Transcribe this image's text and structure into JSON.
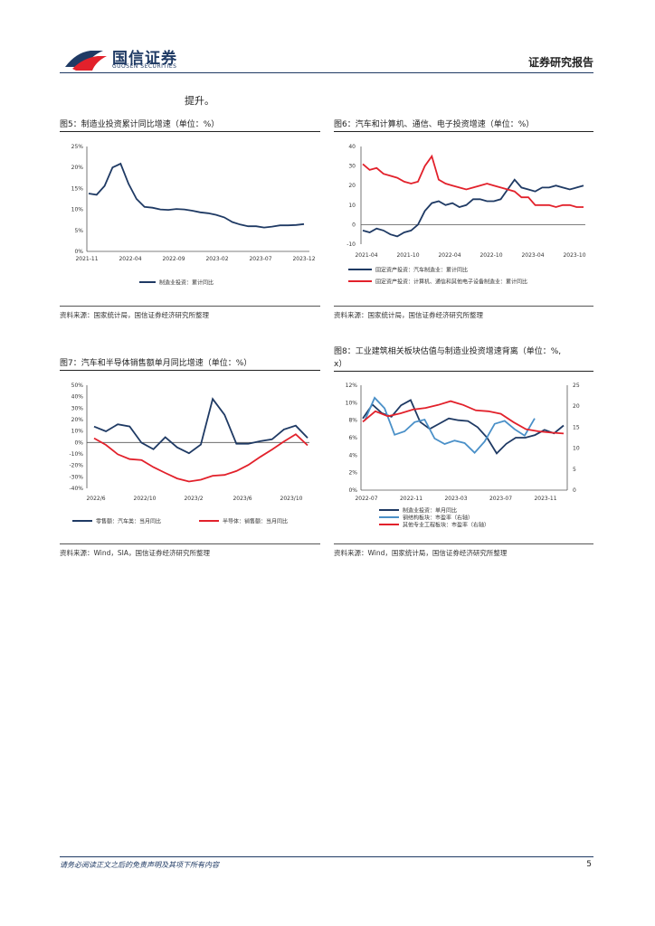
{
  "header": {
    "company_cn": "国信证券",
    "company_en": "GUOSEN SECURITIES",
    "report_type": "证券研究报告"
  },
  "lead_text": "提升。",
  "colors": {
    "navy": "#1f3a64",
    "red": "#e2212b",
    "light_blue": "#4a90c8"
  },
  "figures": {
    "fig5": {
      "title": "图5：制造业投资累计同比增速（单位：%）",
      "source": "资料来源：国家统计局，国信证券经济研究所整理"
    },
    "fig6": {
      "title": "图6：汽车和计算机、通信、电子投资增速（单位：%）",
      "source": "资料来源：国家统计局，国信证券经济研究所整理"
    },
    "fig7": {
      "title": "图7：汽车和半导体销售额单月同比增速（单位：%）",
      "source": "资料来源：Wind，SIA，国信证券经济研究所整理"
    },
    "fig8": {
      "title_line1": "图8：工业建筑相关板块估值与制造业投资增速背离（单位：%,",
      "title_line2": "x）",
      "source": "资料来源：Wind，国家统计局，国信证券经济研究所整理"
    }
  },
  "chart_data": [
    {
      "id": "fig5",
      "type": "line",
      "x_ticks": [
        "2021-11",
        "2022-04",
        "2022-09",
        "2023-02",
        "2023-07",
        "2023-12"
      ],
      "y_ticks": [
        "0%",
        "5%",
        "10%",
        "15%",
        "20%",
        "25%"
      ],
      "ylim": [
        0,
        25
      ],
      "series": [
        {
          "name": "制造业投资：累计同比",
          "color": "#1f3a64",
          "values": [
            13.8,
            13.5,
            15.6,
            20.0,
            20.9,
            16.1,
            12.5,
            10.6,
            10.4,
            10.0,
            9.9,
            10.1,
            10.0,
            9.7,
            9.3,
            9.1,
            8.7,
            8.1,
            7.0,
            6.4,
            6.0,
            6.0,
            5.7,
            5.9,
            6.2,
            6.2,
            6.3,
            6.5
          ]
        }
      ]
    },
    {
      "id": "fig6",
      "type": "line",
      "x_ticks": [
        "2021-04",
        "2021-10",
        "2022-04",
        "2022-10",
        "2023-04",
        "2023-10"
      ],
      "y_ticks": [
        "-10",
        "0",
        "10",
        "20",
        "30",
        "40"
      ],
      "ylim": [
        -10,
        40
      ],
      "series": [
        {
          "name": "固定资产投资：汽车制造业：累计同比",
          "color": "#1f3a64",
          "values": [
            -3,
            -4,
            -2,
            -3,
            -5,
            -6,
            -4,
            -3,
            0,
            7,
            11,
            12,
            10,
            11,
            9,
            10,
            13,
            13,
            12,
            12,
            13,
            18,
            23,
            19,
            18,
            17,
            19,
            19,
            20,
            19,
            18,
            19,
            20
          ]
        },
        {
          "name": "固定资产投资：计算机、通信和其他电子设备制造业：累计同比",
          "color": "#e2212b",
          "values": [
            31,
            28,
            29,
            26,
            25,
            24,
            22,
            21,
            22,
            30,
            35,
            23,
            21,
            20,
            19,
            18,
            19,
            20,
            21,
            20,
            19,
            18,
            17,
            14,
            14,
            10,
            10,
            10,
            9,
            10,
            10,
            9,
            9
          ]
        }
      ]
    },
    {
      "id": "fig7",
      "type": "line",
      "x_ticks": [
        "2022/6",
        "2022/10",
        "2023/2",
        "2023/6",
        "2023/10"
      ],
      "y_ticks": [
        "-40%",
        "-30%",
        "-20%",
        "-10%",
        "0%",
        "10%",
        "20%",
        "30%",
        "40%",
        "50%"
      ],
      "ylim": [
        -40,
        50
      ],
      "series": [
        {
          "name": "零售额：汽车类：当月同比",
          "color": "#1f3a64",
          "values": [
            13.9,
            9.7,
            15.9,
            14.0,
            -0.2,
            -5.9,
            4.6,
            -4.2,
            -9.4,
            -1.8,
            38.0,
            24.2,
            -1.1,
            -1.1,
            1.1,
            2.8,
            11.4,
            14.7,
            4.0
          ]
        },
        {
          "name": "半导体：销售额：当月同比",
          "color": "#e2212b",
          "values": [
            3.7,
            -2.1,
            -10.3,
            -14.5,
            -15.3,
            -21.5,
            -26.6,
            -31.4,
            -34.1,
            -32.5,
            -29.0,
            -28.3,
            -24.9,
            -19.6,
            -12.6,
            -6.1,
            0.9,
            7.2,
            -2.5
          ]
        }
      ]
    },
    {
      "id": "fig8",
      "type": "line",
      "x_ticks": [
        "2022-07",
        "2022-11",
        "2023-03",
        "2023-07",
        "2023-11"
      ],
      "y_ticks_left": [
        "0%",
        "2%",
        "4%",
        "6%",
        "8%",
        "10%",
        "12%"
      ],
      "y_ticks_right": [
        "0",
        "5",
        "10",
        "15",
        "20",
        "25"
      ],
      "ylim_left": [
        0,
        12
      ],
      "ylim_right": [
        0,
        25
      ],
      "series": [
        {
          "name": "制造业投资：单月同比",
          "axis": "left",
          "color": "#1f3a64",
          "values": [
            8.2,
            9.8,
            8.8,
            8.4,
            9.7,
            10.3,
            7.8,
            7.0,
            7.6,
            8.2,
            8.0,
            7.9,
            7.2,
            6.0,
            4.2,
            5.3,
            6.0,
            6.0,
            6.3,
            6.9,
            6.5,
            7.4
          ]
        },
        {
          "name": "钢结构板块：市盈率（右轴）",
          "axis": "right",
          "color": "#4a90c8",
          "values": [
            16.5,
            22.0,
            19.5,
            13.2,
            14.0,
            16.2,
            16.8,
            12.3,
            11.0,
            11.8,
            11.2,
            8.9,
            11.6,
            15.8,
            16.5,
            14.5,
            13.0,
            17.1
          ]
        },
        {
          "name": "其他专业工程板块：市盈率（右轴）",
          "axis": "right",
          "color": "#e2212b",
          "values": [
            16.3,
            18.8,
            17.6,
            18.3,
            19.2,
            19.6,
            20.3,
            21.2,
            20.3,
            19.0,
            18.8,
            18.2,
            16.2,
            14.5,
            14.0,
            13.7,
            13.5
          ]
        }
      ]
    }
  ],
  "footer": {
    "disclaimer": "请务必阅读正文之后的免责声明及其项下所有内容",
    "page_number": "5"
  }
}
